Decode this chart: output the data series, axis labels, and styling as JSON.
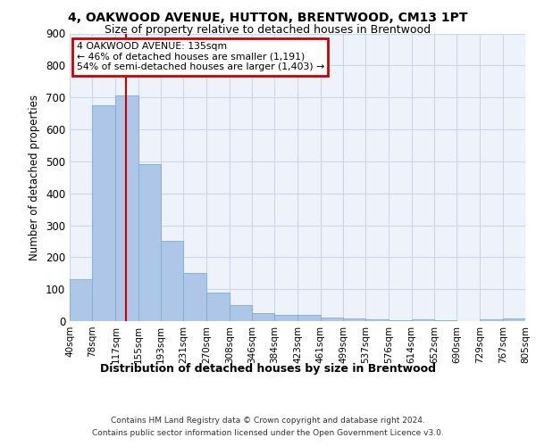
{
  "title": "4, OAKWOOD AVENUE, HUTTON, BRENTWOOD, CM13 1PT",
  "subtitle": "Size of property relative to detached houses in Brentwood",
  "xlabel": "Distribution of detached houses by size in Brentwood",
  "ylabel": "Number of detached properties",
  "bin_labels": [
    "40sqm",
    "78sqm",
    "117sqm",
    "155sqm",
    "193sqm",
    "231sqm",
    "270sqm",
    "308sqm",
    "346sqm",
    "384sqm",
    "423sqm",
    "461sqm",
    "499sqm",
    "537sqm",
    "576sqm",
    "614sqm",
    "652sqm",
    "690sqm",
    "729sqm",
    "767sqm",
    "805sqm"
  ],
  "bar_heights": [
    130,
    675,
    705,
    490,
    250,
    150,
    90,
    50,
    25,
    20,
    20,
    10,
    7,
    5,
    3,
    5,
    3,
    1,
    5,
    8
  ],
  "bar_color": "#aec6e8",
  "bar_edge_color": "#7aadd4",
  "grid_color": "#ccd6e8",
  "background_color": "#eef2fa",
  "annotation_line_color": "#cc0000",
  "annotation_box_text": "4 OAKWOOD AVENUE: 135sqm\n← 46% of detached houses are smaller (1,191)\n54% of semi-detached houses are larger (1,403) →",
  "bin_edges": [
    40,
    78,
    117,
    155,
    193,
    231,
    270,
    308,
    346,
    384,
    423,
    461,
    499,
    537,
    576,
    614,
    652,
    690,
    729,
    767,
    805
  ],
  "ylim": [
    0,
    900
  ],
  "yticks": [
    0,
    100,
    200,
    300,
    400,
    500,
    600,
    700,
    800,
    900
  ],
  "footer_line1": "Contains HM Land Registry data © Crown copyright and database right 2024.",
  "footer_line2": "Contains public sector information licensed under the Open Government Licence v3.0."
}
